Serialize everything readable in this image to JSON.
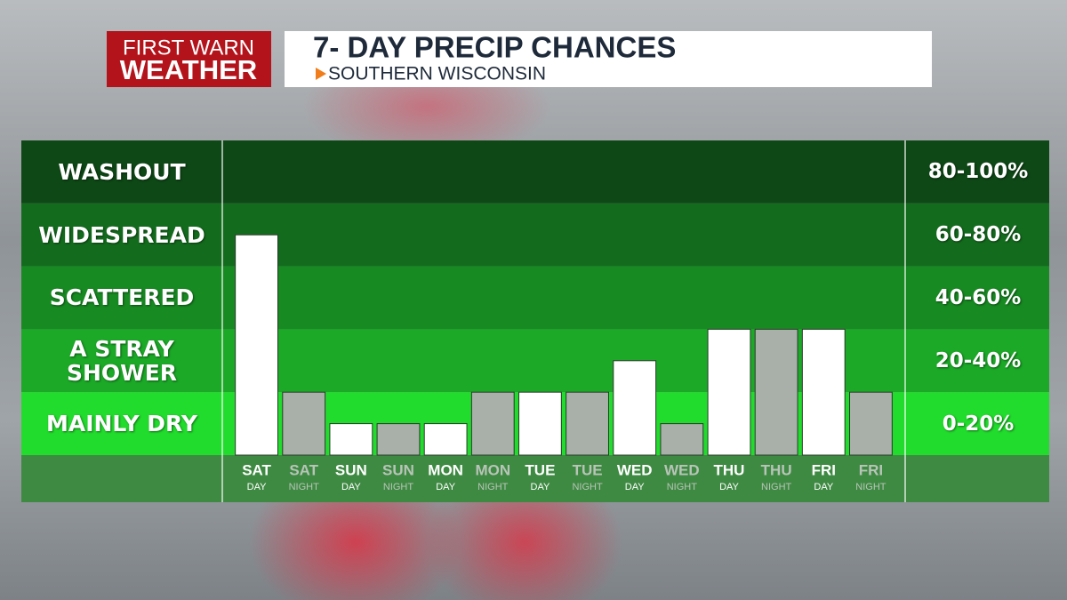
{
  "brand": {
    "line1": "FIRST WARN",
    "line2": "WEATHER"
  },
  "chart_data": {
    "type": "bar",
    "title": "7- DAY PRECIP CHANCES",
    "subtitle": "SOUTHERN WISCONSIN",
    "categories": [
      "SAT",
      "SAT",
      "SUN",
      "SUN",
      "MON",
      "MON",
      "TUE",
      "TUE",
      "WED",
      "WED",
      "THU",
      "THU",
      "FRI",
      "FRI"
    ],
    "category_sublabels": [
      "DAY",
      "NIGHT",
      "DAY",
      "NIGHT",
      "DAY",
      "NIGHT",
      "DAY",
      "NIGHT",
      "DAY",
      "NIGHT",
      "DAY",
      "NIGHT",
      "DAY",
      "NIGHT"
    ],
    "values": [
      70,
      20,
      10,
      10,
      10,
      20,
      20,
      20,
      30,
      10,
      40,
      40,
      40,
      20
    ],
    "colors": [
      "#ffffff",
      "#a9afa9",
      "#ffffff",
      "#a9afa9",
      "#ffffff",
      "#a9afa9",
      "#ffffff",
      "#a9afa9",
      "#ffffff",
      "#a9afa9",
      "#ffffff",
      "#a9afa9",
      "#ffffff",
      "#a9afa9"
    ],
    "ylim": [
      0,
      100
    ],
    "bands": [
      {
        "label": "WASHOUT",
        "range_label": "80-100%",
        "from": 80,
        "to": 100,
        "color": "#0e4816"
      },
      {
        "label": "WIDESPREAD",
        "range_label": "60-80%",
        "from": 60,
        "to": 80,
        "color": "#136c1d"
      },
      {
        "label": "SCATTERED",
        "range_label": "40-60%",
        "from": 40,
        "to": 60,
        "color": "#178a22"
      },
      {
        "label": "A STRAY SHOWER",
        "range_label": "20-40%",
        "from": 20,
        "to": 40,
        "color": "#1ba927"
      },
      {
        "label": "MAINLY DRY",
        "range_label": "0-20%",
        "from": 0,
        "to": 20,
        "color": "#21dc2c"
      }
    ]
  }
}
